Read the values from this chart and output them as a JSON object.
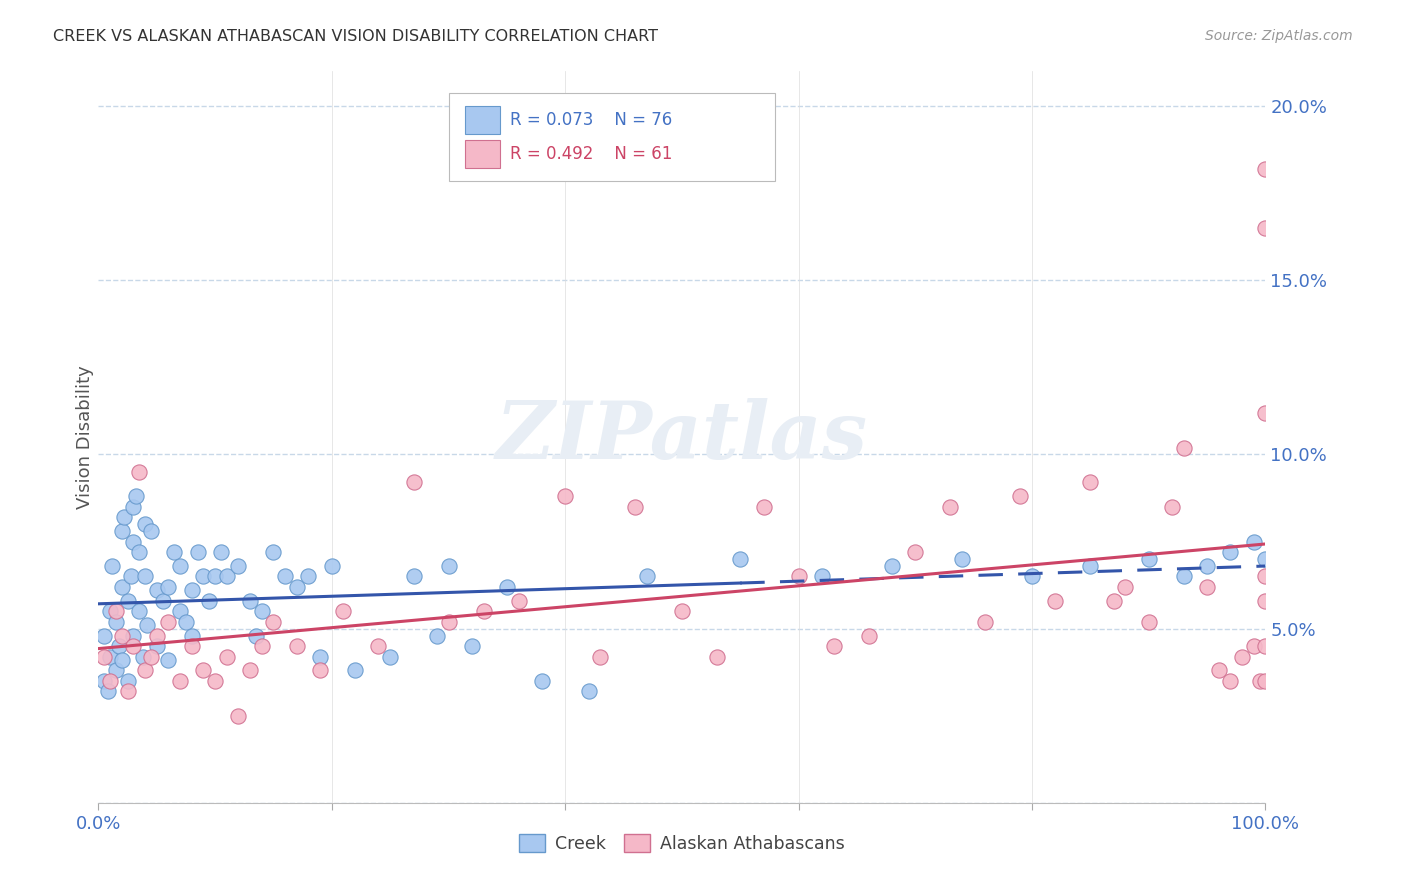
{
  "title": "CREEK VS ALASKAN ATHABASCAN VISION DISABILITY CORRELATION CHART",
  "source": "Source: ZipAtlas.com",
  "ylabel": "Vision Disability",
  "xlim": [
    0,
    100
  ],
  "ylim": [
    0,
    21
  ],
  "ytick_vals": [
    0,
    5,
    10,
    15,
    20
  ],
  "ytick_labels": [
    "",
    "5.0%",
    "10.0%",
    "15.0%",
    "20.0%"
  ],
  "xtick_vals": [
    0,
    20,
    40,
    60,
    80,
    100
  ],
  "xtick_labels": [
    "0.0%",
    "",
    "",
    "",
    "",
    "100.0%"
  ],
  "creek_color": "#A8C8F0",
  "creek_edge_color": "#6699CC",
  "athabascan_color": "#F5B8C8",
  "athabascan_edge_color": "#D07090",
  "creek_line_color": "#3355AA",
  "athabascan_line_color": "#CC4466",
  "grid_color": "#C8D8E8",
  "tick_color": "#4472C4",
  "background_color": "#FFFFFF",
  "legend_creek_R": "0.073",
  "legend_creek_N": "76",
  "legend_ath_R": "0.492",
  "legend_ath_N": "61",
  "watermark": "ZIPatlas",
  "creek_x": [
    0.5,
    0.5,
    0.8,
    1.0,
    1.0,
    1.2,
    1.5,
    1.5,
    1.8,
    2.0,
    2.0,
    2.0,
    2.2,
    2.5,
    2.5,
    2.8,
    3.0,
    3.0,
    3.0,
    3.2,
    3.5,
    3.5,
    3.8,
    4.0,
    4.0,
    4.2,
    4.5,
    5.0,
    5.0,
    5.5,
    6.0,
    6.0,
    6.5,
    7.0,
    7.0,
    7.5,
    8.0,
    8.0,
    8.5,
    9.0,
    9.5,
    10.0,
    10.5,
    11.0,
    12.0,
    13.0,
    13.5,
    14.0,
    15.0,
    16.0,
    17.0,
    18.0,
    19.0,
    20.0,
    22.0,
    25.0,
    27.0,
    29.0,
    30.0,
    32.0,
    35.0,
    38.0,
    42.0,
    47.0,
    55.0,
    62.0,
    68.0,
    74.0,
    80.0,
    85.0,
    90.0,
    93.0,
    95.0,
    97.0,
    99.0,
    100.0
  ],
  "creek_y": [
    3.5,
    4.8,
    3.2,
    5.5,
    4.2,
    6.8,
    3.8,
    5.2,
    4.5,
    7.8,
    6.2,
    4.1,
    8.2,
    5.8,
    3.5,
    6.5,
    8.5,
    7.5,
    4.8,
    8.8,
    5.5,
    7.2,
    4.2,
    6.5,
    8.0,
    5.1,
    7.8,
    6.1,
    4.5,
    5.8,
    6.2,
    4.1,
    7.2,
    5.5,
    6.8,
    5.2,
    6.1,
    4.8,
    7.2,
    6.5,
    5.8,
    6.5,
    7.2,
    6.5,
    6.8,
    5.8,
    4.8,
    5.5,
    7.2,
    6.5,
    6.2,
    6.5,
    4.2,
    6.8,
    3.8,
    4.2,
    6.5,
    4.8,
    6.8,
    4.5,
    6.2,
    3.5,
    3.2,
    6.5,
    7.0,
    6.5,
    6.8,
    7.0,
    6.5,
    6.8,
    7.0,
    6.5,
    6.8,
    7.2,
    7.5,
    7.0
  ],
  "ath_x": [
    0.5,
    1.0,
    1.5,
    2.0,
    2.5,
    3.0,
    3.5,
    4.0,
    4.5,
    5.0,
    6.0,
    7.0,
    8.0,
    9.0,
    10.0,
    11.0,
    12.0,
    13.0,
    14.0,
    15.0,
    17.0,
    19.0,
    21.0,
    24.0,
    27.0,
    30.0,
    33.0,
    36.0,
    40.0,
    43.0,
    46.0,
    50.0,
    53.0,
    57.0,
    60.0,
    63.0,
    66.0,
    70.0,
    73.0,
    76.0,
    79.0,
    82.0,
    85.0,
    87.0,
    88.0,
    90.0,
    92.0,
    93.0,
    95.0,
    96.0,
    97.0,
    98.0,
    99.0,
    99.5,
    100.0,
    100.0,
    100.0,
    100.0,
    100.0,
    100.0,
    100.0
  ],
  "ath_y": [
    4.2,
    3.5,
    5.5,
    4.8,
    3.2,
    4.5,
    9.5,
    3.8,
    4.2,
    4.8,
    5.2,
    3.5,
    4.5,
    3.8,
    3.5,
    4.2,
    2.5,
    3.8,
    4.5,
    5.2,
    4.5,
    3.8,
    5.5,
    4.5,
    9.2,
    5.2,
    5.5,
    5.8,
    8.8,
    4.2,
    8.5,
    5.5,
    4.2,
    8.5,
    6.5,
    4.5,
    4.8,
    7.2,
    8.5,
    5.2,
    8.8,
    5.8,
    9.2,
    5.8,
    6.2,
    5.2,
    8.5,
    10.2,
    6.2,
    3.8,
    3.5,
    4.2,
    4.5,
    3.5,
    11.2,
    3.5,
    16.5,
    18.2,
    4.5,
    5.8,
    6.5
  ]
}
